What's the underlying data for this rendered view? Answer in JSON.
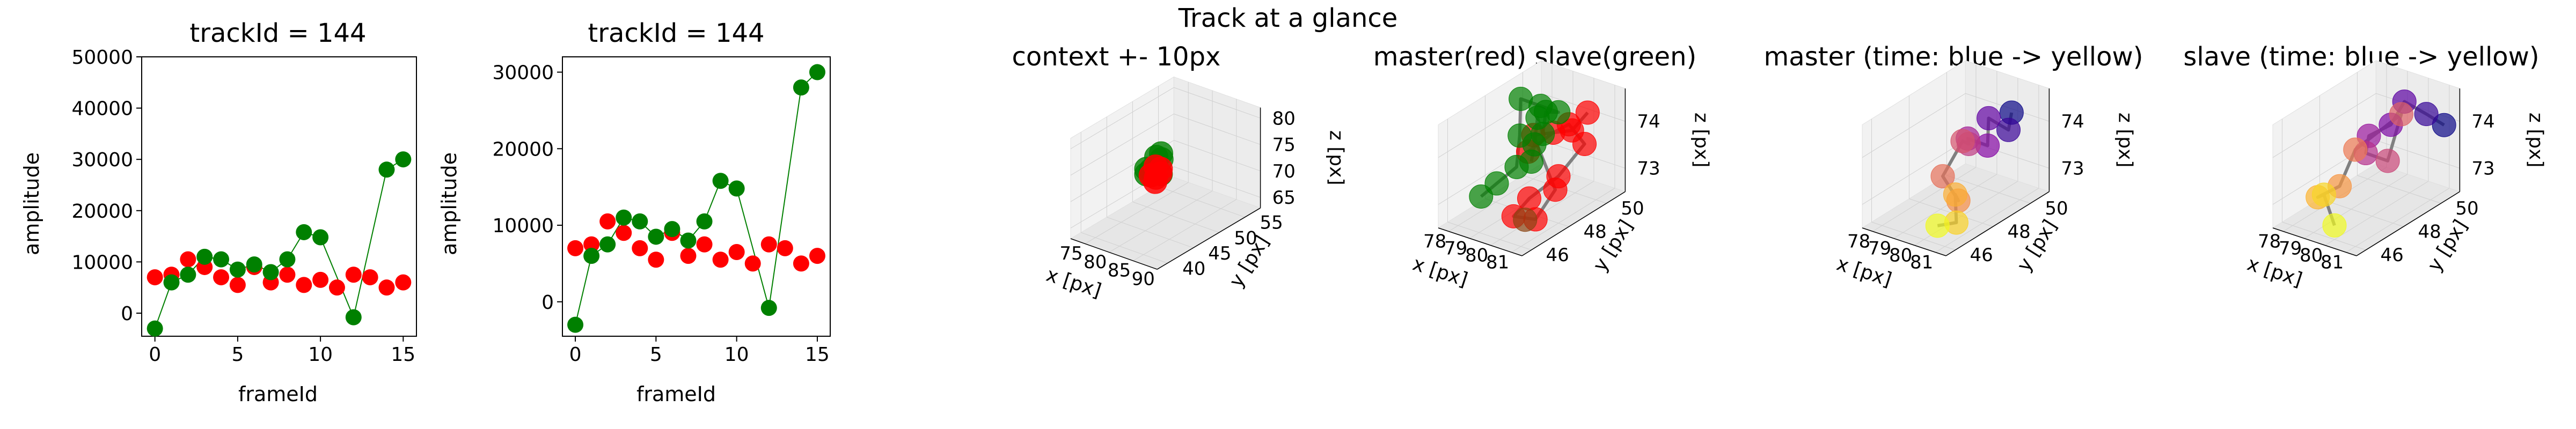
{
  "suptitle": "Track at a glance",
  "colors": {
    "red": "#ff0000",
    "green": "#008000",
    "line": "#808080",
    "pane": "#f2f2f2",
    "grid": "#d0d0d0"
  },
  "chart_data": [
    {
      "type": "scatter",
      "title": "trackId = 144",
      "xlabel": "frameId",
      "ylabel": "amplitude",
      "xlim": [
        -0.8,
        15.8
      ],
      "ylim": [
        -4500,
        50000
      ],
      "xticks": [
        0,
        5,
        10,
        15
      ],
      "yticks": [
        0,
        10000,
        20000,
        30000,
        40000,
        50000
      ],
      "series": [
        {
          "color": "red",
          "connected": false,
          "x": [
            0,
            1,
            2,
            3,
            4,
            5,
            6,
            7,
            8,
            9,
            10,
            11,
            12,
            13,
            14,
            15
          ],
          "y": [
            7000,
            7500,
            10500,
            9000,
            7000,
            5500,
            9000,
            6000,
            7500,
            5500,
            6500,
            5000,
            7500,
            7000,
            5000,
            6000
          ]
        },
        {
          "color": "green",
          "connected": true,
          "x": [
            0,
            1,
            2,
            3,
            4,
            5,
            6,
            7,
            8,
            9,
            10,
            12,
            14,
            15
          ],
          "y": [
            -3000,
            6000,
            7500,
            11000,
            10500,
            8500,
            9500,
            8000,
            10500,
            15800,
            14800,
            -800,
            28000,
            30000
          ]
        }
      ]
    },
    {
      "type": "scatter",
      "title": "trackId = 144",
      "xlabel": "frameId",
      "ylabel": "amplitude",
      "xlim": [
        -0.8,
        15.8
      ],
      "ylim": [
        -4500,
        32000
      ],
      "xticks": [
        0,
        5,
        10,
        15
      ],
      "yticks": [
        0,
        10000,
        20000,
        30000
      ],
      "series": [
        {
          "color": "red",
          "connected": false,
          "x": [
            0,
            1,
            2,
            3,
            4,
            5,
            6,
            7,
            8,
            9,
            10,
            11,
            12,
            13,
            14,
            15
          ],
          "y": [
            7000,
            7500,
            10500,
            9000,
            7000,
            5500,
            9000,
            6000,
            7500,
            5500,
            6500,
            5000,
            7500,
            7000,
            5000,
            6000
          ]
        },
        {
          "color": "green",
          "connected": true,
          "x": [
            0,
            1,
            2,
            3,
            4,
            5,
            6,
            7,
            8,
            9,
            10,
            12,
            14,
            15
          ],
          "y": [
            -3000,
            6000,
            7500,
            11000,
            10500,
            8500,
            9500,
            8000,
            10500,
            15800,
            14800,
            -800,
            28000,
            30000
          ]
        }
      ]
    },
    {
      "type": "scatter3d",
      "title": "context +- 10px",
      "xlabel": "x [px]",
      "ylabel": "y [px]",
      "zlabel": "z [px]",
      "xlim": [
        72,
        90
      ],
      "ylim": [
        38,
        58
      ],
      "zlim": [
        63,
        82
      ],
      "xticks": [
        75,
        80,
        85,
        90
      ],
      "yticks": [
        40,
        45,
        50,
        55
      ],
      "zticks": [
        65,
        70,
        75,
        80
      ],
      "series": [
        {
          "color": "green",
          "alpha": 0.8,
          "x": [
            77,
            78,
            79,
            80,
            78,
            77,
            79,
            80
          ],
          "y": [
            48,
            49,
            47,
            48,
            50,
            48,
            49,
            47
          ],
          "z": [
            72,
            74,
            73,
            72,
            73,
            71,
            75,
            74
          ]
        },
        {
          "color": "red",
          "alpha": 0.85,
          "x": [
            79,
            80,
            81,
            80,
            79,
            81
          ],
          "y": [
            47,
            48,
            46,
            47,
            48,
            47
          ],
          "z": [
            72,
            73,
            72,
            74,
            71,
            73
          ]
        }
      ]
    },
    {
      "type": "scatter3d",
      "title": "master(red) slave(green)",
      "xlabel": "x [px]",
      "ylabel": "y [px]",
      "zlabel": "z [px]",
      "xlim": [
        77.5,
        81.5
      ],
      "ylim": [
        45.5,
        51
      ],
      "zlim": [
        72.5,
        74.7
      ],
      "xticks": [
        78,
        79,
        80,
        81
      ],
      "yticks": [
        46,
        48,
        50
      ],
      "zticks": [
        73,
        74
      ],
      "series": [
        {
          "color": "red",
          "connected": true,
          "x": [
            80.0,
            80.3,
            80.6,
            80.9,
            81.0,
            80.5,
            80.2,
            80.8,
            80.4,
            79.8,
            80.3,
            80.6
          ],
          "y": [
            47.5,
            48.5,
            49.0,
            49.5,
            48.0,
            47.0,
            46.5,
            47.0,
            48.5,
            48.0,
            49.5,
            50.0
          ],
          "z": [
            74.0,
            74.2,
            74.3,
            73.8,
            73.5,
            73.2,
            72.9,
            72.8,
            73.0,
            74.2,
            74.0,
            74.3
          ]
        },
        {
          "color": "green",
          "connected": true,
          "x": [
            78.2,
            78.5,
            79.0,
            78.7,
            78.3,
            78.8,
            79.2,
            79.5,
            79.8,
            80.0,
            80.3,
            80.6
          ],
          "y": [
            47.0,
            47.5,
            48.0,
            48.5,
            49.0,
            49.5,
            50.0,
            49.0,
            48.5,
            48.0,
            47.5,
            47.0
          ],
          "z": [
            72.9,
            73.1,
            73.4,
            73.9,
            74.5,
            74.3,
            74.1,
            74.4,
            74.1,
            74.6,
            74.2,
            74.0
          ]
        },
        {
          "color": "#8b4513",
          "connected": false,
          "x": [
            81.2
          ],
          "y": [
            46.0
          ],
          "z": [
            73.1
          ]
        }
      ]
    },
    {
      "type": "scatter3d",
      "title": "master (time: blue -> yellow)",
      "xlabel": "x [px]",
      "ylabel": "y [px]",
      "zlabel": "z [px]",
      "xlim": [
        77.5,
        81.5
      ],
      "ylim": [
        45.5,
        51
      ],
      "zlim": [
        72.5,
        74.7
      ],
      "xticks": [
        78,
        79,
        80,
        81
      ],
      "yticks": [
        46,
        48,
        50
      ],
      "zticks": [
        73,
        74
      ],
      "colormap": "plasma",
      "series": [
        {
          "connected": true,
          "x": [
            80.6,
            80.9,
            80.4,
            80.8,
            80.3,
            79.9,
            80.5,
            80.0,
            80.3,
            80.6,
            81.1,
            80.2
          ],
          "y": [
            50.0,
            49.5,
            49.0,
            48.5,
            48.0,
            48.5,
            47.5,
            47.0,
            47.5,
            47.0,
            46.5,
            46.5
          ],
          "z": [
            74.3,
            74.1,
            74.4,
            74.0,
            74.2,
            73.9,
            74.3,
            73.6,
            73.0,
            73.3,
            72.9,
            72.7
          ]
        }
      ]
    },
    {
      "type": "scatter3d",
      "title": "slave (time: blue -> yellow)",
      "xlabel": "x [px]",
      "ylabel": "y [px]",
      "zlabel": "z [px]",
      "xlim": [
        77.5,
        81.5
      ],
      "ylim": [
        45.5,
        51
      ],
      "zlim": [
        72.5,
        74.7
      ],
      "xticks": [
        78,
        79,
        80,
        81
      ],
      "yticks": [
        46,
        48,
        50
      ],
      "zticks": [
        73,
        74
      ],
      "colormap": "plasma",
      "series": [
        {
          "connected": true,
          "x": [
            81.2,
            80.8,
            80.2,
            80.0,
            79.4,
            79.7,
            80.3,
            80.5,
            79.2,
            78.9,
            78.3,
            78.6,
            80.0
          ],
          "y": [
            50.5,
            50.0,
            49.5,
            49.0,
            48.5,
            48.0,
            48.5,
            49.0,
            48.0,
            47.5,
            47.0,
            47.0,
            46.0
          ],
          "z": [
            74.0,
            74.3,
            74.6,
            74.2,
            74.0,
            73.8,
            73.6,
            74.5,
            73.8,
            73.1,
            72.9,
            73.0,
            72.8
          ]
        }
      ]
    }
  ]
}
